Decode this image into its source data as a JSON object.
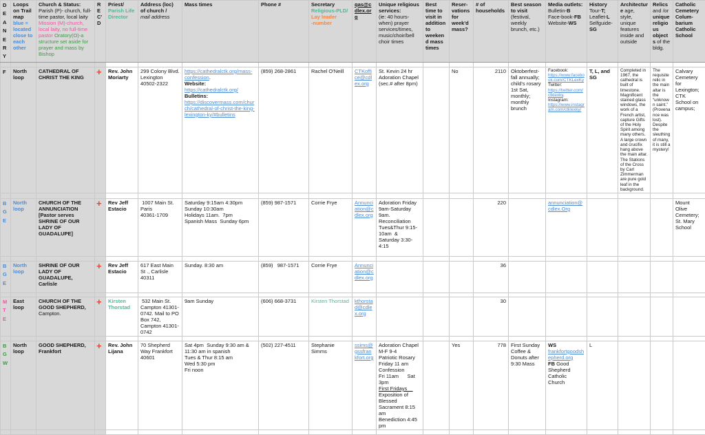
{
  "palette": {
    "header_gray": "#d8d8d8",
    "grid_border": "#c9c9c9",
    "link_blue": "#4a8bd9",
    "mission_pink": "#f0549f",
    "oratory_green": "#3e9948",
    "pld_teal": "#4fb596",
    "lay_leader_orange": "#f5863d",
    "recd_cross_red": "#e8432c"
  },
  "header": [
    [
      {
        "t": "D\nE\nA\nN\nE\nR\nY",
        "c": "b"
      }
    ],
    [
      {
        "t": "Loops on Trail map ",
        "c": "b"
      },
      {
        "t": "blue = located close to each other",
        "c": "b blue"
      }
    ],
    [
      {
        "t": "Church & Status: ",
        "c": "b"
      },
      {
        "t": "Parish (P)- church, full-time pastor, local laity "
      },
      {
        "t": "Mission (M)-church, local laity, no full-time pastor ",
        "c": "pink"
      },
      {
        "t": "Oratory(O)-a structure set aside for prayer and mass by Bishop",
        "c": "green"
      }
    ],
    [
      {
        "t": "R\nE\nC'\nD",
        "c": "b"
      }
    ],
    [
      {
        "t": "Priest/\n",
        "c": "b"
      },
      {
        "t": "Parish Life Director",
        "c": "b teal"
      }
    ],
    [
      {
        "t": "Address (loc) of church /\n",
        "c": "b"
      },
      {
        "t": "mail address",
        "c": "i"
      }
    ],
    [
      {
        "t": "Mass times",
        "c": "b"
      }
    ],
    [
      {
        "t": "Phone #",
        "c": "b"
      }
    ],
    [
      {
        "t": "Secretary\n",
        "c": "b"
      },
      {
        "t": "Religious-PLD/\n",
        "c": "b teal"
      },
      {
        "t": "Lay leader\n-number",
        "c": "b orange"
      }
    ],
    [
      {
        "t": "qas@cdlex.org",
        "c": "b u"
      }
    ],
    [
      {
        "t": "Unique religious services:\n",
        "c": "b"
      },
      {
        "t": "(ie: 40 hours-when) prayer services/times, music/choir/bell choir times"
      }
    ],
    [
      {
        "t": "Best time to visit in addition to weekend mass times",
        "c": "b"
      }
    ],
    [
      {
        "t": "Reser-vations for week'd mass?",
        "c": "b"
      }
    ],
    [
      {
        "t": "# of households",
        "c": "b"
      }
    ],
    [
      {
        "t": "Best season to visit ",
        "c": "b"
      },
      {
        "t": "(festival, weekly brunch, etc.)"
      }
    ],
    [
      {
        "t": "Media outlets:\n",
        "c": "b"
      },
      {
        "t": "Bulletin-"
      },
      {
        "t": "B",
        "c": "b"
      },
      {
        "t": "\nFace-book-"
      },
      {
        "t": "FB",
        "c": "b"
      },
      {
        "t": "\nWebsite-"
      },
      {
        "t": "WS",
        "c": "b"
      }
    ],
    [
      {
        "t": "History\n",
        "c": "b"
      },
      {
        "t": "Tour-"
      },
      {
        "t": "T;",
        "c": "b"
      },
      {
        "t": "\nLeaflet-"
      },
      {
        "t": "L",
        "c": "b"
      },
      {
        "t": "\nSelfguide-"
      },
      {
        "t": "SG",
        "c": "b"
      }
    ],
    [
      {
        "t": "Architecture",
        "c": "b"
      },
      {
        "t": " age, style, unique features inside and outside"
      }
    ],
    [
      {
        "t": "Relics",
        "c": "b"
      },
      {
        "t": " and /or "
      },
      {
        "t": "unique religious objects",
        "c": "b"
      },
      {
        "t": " of the bldg."
      }
    ],
    [
      {
        "t": "Catholic Cemetery Colum-barium Catholic School",
        "c": "b"
      }
    ]
  ],
  "rows": [
    [
      [
        {
          "t": "F",
          "c": "b"
        }
      ],
      [
        {
          "t": "North loop",
          "c": "b"
        }
      ],
      [
        {
          "t": "CATHEDRAL OF CHRIST THE KING",
          "c": "b"
        }
      ],
      [
        {
          "t": "+",
          "c": "b red",
          "n": "recd-cross-icon"
        }
      ],
      [
        {
          "t": "Rev. John Moriarty",
          "c": "b"
        }
      ],
      [
        {
          "t": "299 Colony Blvd. Lexington 40502-2322"
        }
      ],
      [
        {
          "t": "https://cathedralctk.org/mass-confession",
          "c": "link",
          "n": "mass-times-link"
        },
        {
          "t": ". \n"
        },
        {
          "t": "Website: ",
          "c": "b"
        },
        {
          "t": "https://cathedralctk.org/",
          "c": "link",
          "n": "website-link"
        },
        {
          "t": "\n"
        },
        {
          "t": "Bulletins: ",
          "c": "b"
        },
        {
          "t": "https://discovermass.com/church/cathedral-of-christ-the-king-lexington-ky/#bulletins",
          "c": "link",
          "n": "bulletins-link"
        }
      ],
      [
        {
          "t": "(859) 268-2861"
        }
      ],
      [
        {
          "t": "Rachel O'Neill"
        }
      ],
      [
        {
          "t": "CTKoffice@cdlex.org",
          "c": "link",
          "n": "email-link"
        }
      ],
      [
        {
          "t": "St. Kevin 24 hr Adoration Chapel (sec.# after 8pm)"
        }
      ],
      [],
      [
        {
          "t": "No"
        }
      ],
      [
        {
          "t": "2110"
        }
      ],
      [
        {
          "t": "Oktoberfest-fall annually; child's rosary 1st Sat, monthly; monthly brunch"
        }
      ],
      [
        {
          "t": "Facebook: "
        },
        {
          "t": "https://www.facebook.com/CTKLexKy",
          "c": "link",
          "n": "facebook-link"
        },
        {
          "t": "\nTwitter: "
        },
        {
          "t": "https://twitter.com/ctklexky",
          "c": "link",
          "n": "twitter-link"
        },
        {
          "t": ".\nInstagram: "
        },
        {
          "t": "https://www.instagram.com/ctklexky/",
          "c": "link",
          "n": "instagram-link"
        }
      ],
      [
        {
          "t": "T, L, and SG",
          "c": "b"
        }
      ],
      [
        {
          "t": "Completed in 1967, the cathedral is built of limestone. Magnificent stained glass windows, the work of a French artist, capture Gifts of the Holy Spirit among many others. A large crown and crucifix hang above the main altar. The Stations of the Cross by Carl Zimmerman are pure gold leaf in the background."
        }
      ],
      [
        {
          "t": "The requisite relic in the main altar is the “unknown saint.” (Provenance was lost). Despite the sleuthing of many, it is still a mystery!"
        }
      ],
      [
        {
          "t": "Calvary Cemetery for Lexington; CTK School on campus;"
        }
      ]
    ],
    [
      [
        {
          "t": "B\nG\nE",
          "c": "b blue"
        }
      ],
      [
        {
          "t": "North loop",
          "c": "b blue"
        }
      ],
      [
        {
          "t": "CHURCH OF THE ANNUNCIATION [Pastor serves SHRINE OF OUR LADY OF GUADALUPE]",
          "c": "b"
        }
      ],
      [
        {
          "t": "+",
          "c": "b red",
          "n": "recd-cross-icon"
        }
      ],
      [
        {
          "t": "Rev Jeff Estacio",
          "c": "b"
        }
      ],
      [
        {
          "t": " 1007 Main St.\nParis\n40361-1709"
        }
      ],
      [
        {
          "t": "Saturday 9:15am 4:30pm\nSunday 10:30am\nHolidays 11am.  7pm\nSpanish Mass  Sunday 6pm"
        }
      ],
      [
        {
          "t": "(859) 987-1571"
        }
      ],
      [
        {
          "t": "Corrie Frye"
        }
      ],
      [
        {
          "t": "Annunciation@cdlex.org",
          "c": "link",
          "n": "email-link"
        }
      ],
      [
        {
          "t": "Adoration Friday 9am-Saturday 9am.\nReconciliation Tues&Thur 9:15-10am  &\nSaturday 3:30-4:15"
        }
      ],
      [],
      [],
      [
        {
          "t": "220"
        }
      ],
      [],
      [
        {
          "t": "annunciation@cdlex.Org",
          "c": "link",
          "n": "parish-email-link"
        }
      ],
      [],
      [],
      [],
      [
        {
          "t": "Mount Olive Cemetery; St. Mary School"
        }
      ]
    ],
    [
      [
        {
          "t": "B\nG\nE",
          "c": "b blue"
        }
      ],
      [
        {
          "t": "North loop",
          "c": "b blue"
        }
      ],
      [
        {
          "t": "SHRINE OF OUR LADY OF GUADALUPE, Carlisle",
          "c": "b"
        }
      ],
      [
        {
          "t": "+",
          "c": "b red",
          "n": "recd-cross-icon"
        }
      ],
      [
        {
          "t": "Rev Jeff Estacio",
          "c": "b"
        }
      ],
      [
        {
          "t": "617 East Main St ., Carlisle 40311"
        }
      ],
      [
        {
          "t": "Sunday. 8:30 am"
        }
      ],
      [
        {
          "t": "(859)   987-1571"
        }
      ],
      [
        {
          "t": "Corrie Frye"
        }
      ],
      [
        {
          "t": "Annunciation@cdlex.org",
          "c": "link",
          "n": "email-link"
        }
      ],
      [],
      [],
      [],
      [
        {
          "t": "36"
        }
      ],
      [],
      [],
      [],
      [],
      [],
      []
    ],
    [
      [
        {
          "t": "M\nT\nE",
          "c": "b pink"
        }
      ],
      [
        {
          "t": "East loop",
          "c": "b"
        }
      ],
      [
        {
          "t": "CHURCH OF THE GOOD SHEPHERD,",
          "c": "b"
        },
        {
          "t": " Campton."
        }
      ],
      [
        {
          "t": "+",
          "c": "b red",
          "n": "recd-cross-icon"
        }
      ],
      [
        {
          "t": "Kirsten Thorstad",
          "c": "b teal"
        }
      ],
      [
        {
          "t": " 532 Main St. Campton 41301-0742. Mail to PO Box 742, Campton 41301-0742"
        }
      ],
      [
        {
          "t": "9am Sunday"
        }
      ],
      [
        {
          "t": "(606) 668-3731"
        }
      ],
      [
        {
          "t": "Kirsten Thorstad",
          "c": "teal"
        }
      ],
      [
        {
          "t": "kthorstad@cdlex.org",
          "c": "link",
          "n": "email-link"
        }
      ],
      [],
      [],
      [],
      [
        {
          "t": "30"
        }
      ],
      [],
      [],
      [],
      [],
      [],
      []
    ],
    [
      [
        {
          "t": "B\nG\nW",
          "c": "b green"
        }
      ],
      [
        {
          "t": "North loop",
          "c": "b"
        }
      ],
      [
        {
          "t": "GOOD SHEPHERD, Frankfort",
          "c": "b"
        }
      ],
      [
        {
          "t": "+",
          "c": "b red",
          "n": "recd-cross-icon"
        }
      ],
      [
        {
          "t": "Rev. John Lijana",
          "c": "b"
        }
      ],
      [
        {
          "t": "70 Shepherd Way Frankfort 40601"
        }
      ],
      [
        {
          "t": "Sat 4pm  Sunday 9:30 am & 11:30 am in spanish\nTues & Thur 8:15 am\nWed 5:30 pm\nFri noon"
        }
      ],
      [
        {
          "t": "(502) 227-4511"
        }
      ],
      [
        {
          "t": "Stephanie Simms"
        }
      ],
      [
        {
          "t": "ssims@gssfrankfort.org",
          "c": "link",
          "n": "email-link"
        }
      ],
      [
        {
          "t": "Adoration Chapel M-F 9-4\nPatriotic Rosary Friday 11 am\nConfession\nFri 11am      Sat 3pm\n"
        },
        {
          "t": "First Fridays    ",
          "c": "u"
        },
        {
          "t": "\nExposition of Blessed Sacrament 8:15 am\nBenediction 4:45 pm"
        }
      ],
      [],
      [
        {
          "t": "Yes"
        }
      ],
      [
        {
          "t": "778"
        }
      ],
      [
        {
          "t": "First Sunday Coffee & Donuts after 9:30 Mass"
        }
      ],
      [
        {
          "t": "WS\n",
          "c": "b"
        },
        {
          "t": "frankfortgoodshepherd.org",
          "c": "link",
          "n": "website-link"
        },
        {
          "t": "\n"
        },
        {
          "t": "FB ",
          "c": "b"
        },
        {
          "t": "Good Shepherd Catholic Church"
        }
      ],
      [
        {
          "t": "L"
        }
      ],
      [],
      [],
      []
    ]
  ]
}
